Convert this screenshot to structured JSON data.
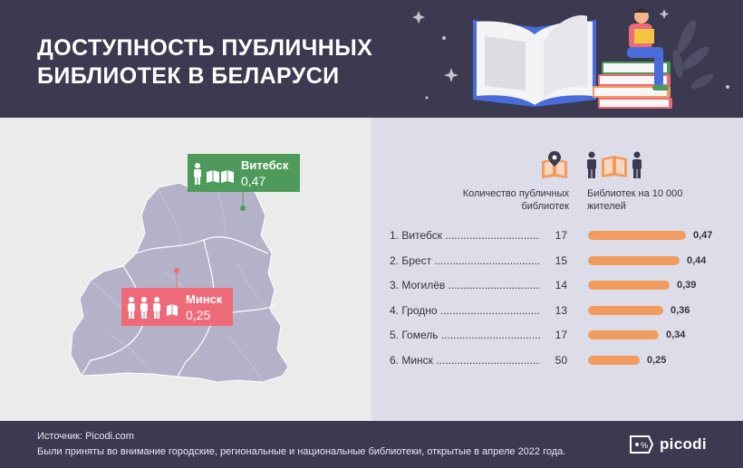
{
  "title": {
    "line1": "ДОСТУПНОСТЬ ПУБЛИЧНЫХ",
    "line2": "БИБЛИОТЕК В БЕЛАРУСИ"
  },
  "callouts": {
    "vitebsk": {
      "name": "Витебск",
      "value": "0,47"
    },
    "minsk": {
      "name": "Минск",
      "value": "0,25"
    }
  },
  "headers": {
    "count": "Количество публичных библиотек",
    "per": "Библиотек на 10 000 жителей"
  },
  "chart_data": {
    "type": "bar",
    "categories": [
      "1. Витебск",
      "2. Брест",
      "3. Могилёв",
      "4. Гродно",
      "5. Гомель",
      "6. Минск"
    ],
    "library_counts": [
      17,
      15,
      14,
      13,
      17,
      50
    ],
    "series": [
      {
        "name": "Библиотек на 10 000 жителей",
        "values": [
          0.47,
          0.44,
          0.39,
          0.36,
          0.34,
          0.25
        ]
      }
    ],
    "value_labels": [
      "0,47",
      "0,44",
      "0,39",
      "0,36",
      "0,34",
      "0,25"
    ],
    "xlim": [
      0,
      0.47
    ]
  },
  "footer": {
    "source": "Источник: Picodi.com",
    "note": "Были приняты во внимание городские, региональные и национальные библиотеки, открытые в апреле 2022 года."
  },
  "logo": {
    "text": "picodi"
  },
  "colors": {
    "header_bg": "#3b3a50",
    "bar": "#f29b5f",
    "vitebsk": "#4e9a5a",
    "minsk": "#ef6a78",
    "map": "#b4b2c8"
  }
}
